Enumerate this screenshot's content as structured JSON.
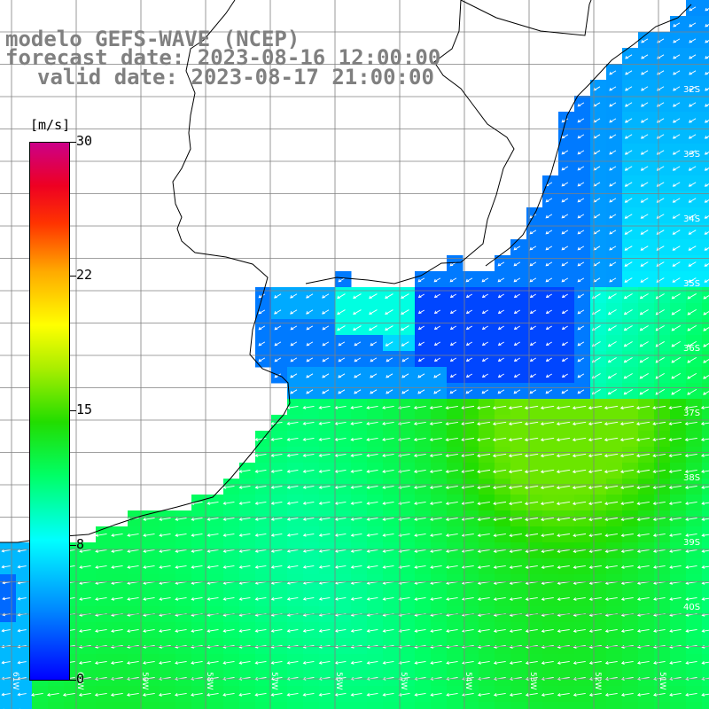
{
  "title": {
    "line1": "modelo GEFS-WAVE (NCEP)",
    "line2": "forecast date: 2023-08-16 12:00:00",
    "line3": "valid date: 2023-08-17 21:00:00"
  },
  "colorbar": {
    "unit": "[m/s]",
    "min": 0,
    "max": 30,
    "labels": [
      "30",
      "22",
      "15",
      "8",
      "0"
    ],
    "label_values": [
      30,
      22,
      15,
      8,
      0
    ],
    "colors": [
      "#0000ff",
      "#0088ff",
      "#00ffff",
      "#00ff66",
      "#22dd00",
      "#aaee00",
      "#ffff00",
      "#ffaa00",
      "#ff3300",
      "#ee0022",
      "#cc0088"
    ]
  },
  "map": {
    "variable": "wind speed",
    "land_color": "#ffffff",
    "grid_color": "#808080",
    "arrow_color": "#ffffff",
    "lat_labels": [
      "32S",
      "33S",
      "34S",
      "35S",
      "36S",
      "37S",
      "38S",
      "39S",
      "40S"
    ],
    "lon_labels": [
      "61W",
      "60W",
      "59W",
      "58W",
      "57W",
      "56W",
      "55W",
      "54W",
      "53W",
      "52W",
      "51W"
    ],
    "prevailing_wind": "southwest-moving"
  }
}
